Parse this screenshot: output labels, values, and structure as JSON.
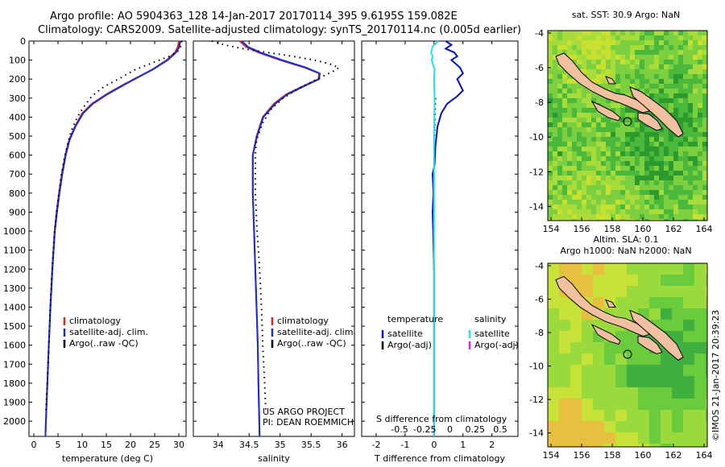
{
  "header": {
    "line1": "Argo profile: AO 5904363_128 14-Jan-2017 20170114_395 9.6195S 159.082E",
    "line2": "Climatology: CARS2009. Satellite-adjusted climatology: synTS_20170114.nc (0.005d earlier)"
  },
  "side_label": "©IMOS 21-Jan-2017 20:39:23",
  "colors": {
    "climatology": "#e8201c",
    "satellite_adj": "#1030e0",
    "argo": "#000000",
    "sat_temp": "#0010c8",
    "sat_sal": "#20e0f0",
    "argo_sal_adj": "#e020e0"
  },
  "chart_data": [
    {
      "type": "line",
      "id": "temperature",
      "xlabel": "temperature (deg C)",
      "xlim": [
        -1,
        31.5
      ],
      "xticks": [
        0,
        5,
        10,
        15,
        20,
        25,
        30
      ],
      "xticklabels": [
        "0",
        "5",
        "10",
        "15",
        "20",
        "25",
        "30"
      ],
      "ylim": [
        0,
        2080
      ],
      "yticks": [
        0,
        100,
        200,
        300,
        400,
        500,
        600,
        700,
        800,
        900,
        1000,
        1100,
        1200,
        1300,
        1400,
        1500,
        1600,
        1700,
        1800,
        1900,
        2000
      ],
      "legend": [
        "climatology",
        "satellite-adj. clim.",
        "Argo(..raw -QC)"
      ],
      "series": [
        {
          "name": "climatology",
          "style": "solid",
          "color": "#e8201c",
          "points": [
            [
              30,
              0
            ],
            [
              29.8,
              30
            ],
            [
              29.2,
              60
            ],
            [
              27.5,
              100
            ],
            [
              24.5,
              150
            ],
            [
              21.5,
              190
            ],
            [
              18.5,
              230
            ],
            [
              15,
              280
            ],
            [
              12,
              330
            ],
            [
              10,
              380
            ],
            [
              8.5,
              450
            ],
            [
              7.3,
              520
            ],
            [
              6.5,
              600
            ],
            [
              5.8,
              700
            ],
            [
              5.2,
              800
            ],
            [
              4.7,
              900
            ],
            [
              4.3,
              1000
            ],
            [
              3.8,
              1200
            ],
            [
              3.4,
              1400
            ],
            [
              3.1,
              1600
            ],
            [
              2.8,
              1800
            ],
            [
              2.5,
              2000
            ],
            [
              2.4,
              2080
            ]
          ]
        },
        {
          "name": "satellite-adj. clim.",
          "style": "solid",
          "color": "#1030e0",
          "points": [
            [
              30.3,
              0
            ],
            [
              30.1,
              30
            ],
            [
              29.4,
              60
            ],
            [
              27.7,
              100
            ],
            [
              24.6,
              150
            ],
            [
              21.6,
              190
            ],
            [
              18.7,
              230
            ],
            [
              15.2,
              280
            ],
            [
              12.2,
              330
            ],
            [
              10.2,
              380
            ],
            [
              8.6,
              450
            ],
            [
              7.4,
              520
            ],
            [
              6.6,
              600
            ],
            [
              5.9,
              700
            ],
            [
              5.3,
              800
            ],
            [
              4.8,
              900
            ],
            [
              4.35,
              1000
            ],
            [
              3.85,
              1200
            ],
            [
              3.45,
              1400
            ],
            [
              3.1,
              1600
            ],
            [
              2.8,
              1800
            ],
            [
              2.5,
              2000
            ],
            [
              2.4,
              2080
            ]
          ]
        },
        {
          "name": "Argo(..raw -QC)",
          "style": "dotted",
          "color": "#000000",
          "points": [
            [
              30.6,
              0
            ],
            [
              30.5,
              20
            ],
            [
              30,
              50
            ],
            [
              28,
              80
            ],
            [
              25,
              110
            ],
            [
              21,
              150
            ],
            [
              17.5,
              200
            ],
            [
              14.5,
              240
            ],
            [
              12,
              290
            ],
            [
              10.5,
              340
            ],
            [
              9,
              400
            ],
            [
              7.8,
              470
            ],
            [
              7,
              540
            ],
            [
              6.3,
              620
            ],
            [
              5.7,
              700
            ],
            [
              5.2,
              800
            ],
            [
              4.7,
              900
            ],
            [
              4.3,
              1000
            ],
            [
              3.8,
              1200
            ],
            [
              3.4,
              1400
            ],
            [
              3.1,
              1600
            ],
            [
              2.8,
              1800
            ],
            [
              2.5,
              1950
            ]
          ]
        }
      ]
    },
    {
      "type": "line",
      "id": "salinity",
      "xlabel": "salinity",
      "xlim": [
        33.6,
        36.2
      ],
      "xticks": [
        34,
        34.5,
        35,
        35.5,
        36
      ],
      "xticklabels": [
        "34",
        "34.5",
        "35",
        "35.5",
        "36"
      ],
      "ylim": [
        0,
        2080
      ],
      "legend": [
        "climatology",
        "satellite-adj. clim.",
        "Argo(..raw -QC)"
      ],
      "annotation": [
        "US ARGO PROJECT",
        "PI: DEAN ROEMMICH"
      ],
      "series": [
        {
          "name": "climatology",
          "style": "solid",
          "color": "#e8201c",
          "points": [
            [
              34.35,
              0
            ],
            [
              34.45,
              30
            ],
            [
              34.65,
              60
            ],
            [
              35.0,
              100
            ],
            [
              35.4,
              140
            ],
            [
              35.63,
              170
            ],
            [
              35.62,
              200
            ],
            [
              35.35,
              240
            ],
            [
              35.1,
              280
            ],
            [
              34.9,
              330
            ],
            [
              34.72,
              400
            ],
            [
              34.62,
              500
            ],
            [
              34.56,
              600
            ],
            [
              34.56,
              800
            ],
            [
              34.58,
              1000
            ],
            [
              34.6,
              1200
            ],
            [
              34.62,
              1400
            ],
            [
              34.64,
              1600
            ],
            [
              34.65,
              1800
            ],
            [
              34.67,
              2080
            ]
          ]
        },
        {
          "name": "satellite-adj. clim.",
          "style": "solid",
          "color": "#1030e0",
          "points": [
            [
              34.38,
              0
            ],
            [
              34.48,
              30
            ],
            [
              34.68,
              60
            ],
            [
              35.03,
              100
            ],
            [
              35.42,
              140
            ],
            [
              35.64,
              170
            ],
            [
              35.63,
              200
            ],
            [
              35.37,
              240
            ],
            [
              35.12,
              280
            ],
            [
              34.92,
              330
            ],
            [
              34.73,
              400
            ],
            [
              34.63,
              500
            ],
            [
              34.56,
              600
            ],
            [
              34.56,
              800
            ],
            [
              34.58,
              1000
            ],
            [
              34.6,
              1200
            ],
            [
              34.62,
              1400
            ],
            [
              34.64,
              1600
            ],
            [
              34.65,
              1800
            ],
            [
              34.67,
              2080
            ]
          ]
        },
        {
          "name": "Argo(..raw -QC)",
          "style": "dotted",
          "color": "#000000",
          "points": [
            [
              33.9,
              0
            ],
            [
              34.1,
              20
            ],
            [
              34.4,
              40
            ],
            [
              34.8,
              60
            ],
            [
              35.2,
              80
            ],
            [
              35.55,
              100
            ],
            [
              35.8,
              120
            ],
            [
              35.95,
              140
            ],
            [
              35.85,
              160
            ],
            [
              35.6,
              200
            ],
            [
              35.3,
              250
            ],
            [
              35.05,
              300
            ],
            [
              34.85,
              360
            ],
            [
              34.72,
              430
            ],
            [
              34.62,
              520
            ],
            [
              34.6,
              600
            ],
            [
              34.6,
              800
            ],
            [
              34.63,
              1000
            ],
            [
              34.67,
              1200
            ],
            [
              34.7,
              1400
            ],
            [
              34.72,
              1600
            ],
            [
              34.75,
              1800
            ],
            [
              34.77,
              1950
            ]
          ]
        }
      ]
    },
    {
      "type": "line",
      "id": "difference",
      "xlabel": "T difference from climatology",
      "xlim": [
        -2.5,
        2.9
      ],
      "xticks": [
        -2,
        -1,
        0,
        1,
        2
      ],
      "xticklabels": [
        "-2",
        "-1",
        "0",
        "1",
        "2"
      ],
      "top_label": "S difference from climatology",
      "top_ticks": [
        -0.5,
        -0.25,
        0,
        0.25,
        0.5
      ],
      "top_ticklabels": [
        "-0.5",
        "-0.25",
        "0",
        "0.25",
        "0.5"
      ],
      "ylim": [
        0,
        2080
      ],
      "legend_groups": [
        {
          "title": "temperature",
          "items": [
            "satellite",
            "Argo(-adj)"
          ]
        },
        {
          "title": "salinity",
          "items": [
            "satellite",
            "Argo(-adj)"
          ]
        }
      ],
      "series": [
        {
          "name": "satellite",
          "quantity": "temperature",
          "style": "solid",
          "color": "#0010c8",
          "points": [
            [
              0.4,
              0
            ],
            [
              0.6,
              20
            ],
            [
              0.4,
              40
            ],
            [
              0.7,
              60
            ],
            [
              0.8,
              80
            ],
            [
              0.6,
              100
            ],
            [
              0.9,
              140
            ],
            [
              1.0,
              170
            ],
            [
              0.8,
              200
            ],
            [
              0.9,
              230
            ],
            [
              1.0,
              260
            ],
            [
              0.8,
              290
            ],
            [
              0.45,
              330
            ],
            [
              0.25,
              380
            ],
            [
              0.12,
              450
            ],
            [
              0.05,
              550
            ],
            [
              0.02,
              650
            ],
            [
              -0.05,
              700
            ],
            [
              -0.02,
              800
            ],
            [
              -0.05,
              900
            ],
            [
              -0.03,
              1000
            ],
            [
              0.0,
              1200
            ],
            [
              0.0,
              1500
            ],
            [
              0.0,
              1800
            ],
            [
              0.0,
              2080
            ]
          ]
        },
        {
          "name": "Argo(-adj)",
          "quantity": "temperature",
          "style": "dotted",
          "color": "#000000",
          "points": [
            [
              0.05,
              300
            ],
            [
              0.03,
              400
            ],
            [
              0.02,
              500
            ]
          ]
        },
        {
          "name": "satellite",
          "quantity": "salinity",
          "style": "solid",
          "color": "#20e0f0",
          "points": [
            [
              0.15,
              0
            ],
            [
              -0.05,
              30
            ],
            [
              -0.1,
              60
            ],
            [
              -0.05,
              80
            ],
            [
              -0.08,
              100
            ],
            [
              0.02,
              150
            ],
            [
              0.0,
              200
            ],
            [
              0.02,
              300
            ],
            [
              0.0,
              500
            ],
            [
              0.0,
              800
            ],
            [
              0.0,
              1200
            ],
            [
              0.0,
              1600
            ],
            [
              0.0,
              2080
            ]
          ]
        }
      ]
    }
  ],
  "maps": [
    {
      "id": "sst-map",
      "title_lines": [
        "sat. SST: 30.9 Argo: NaN"
      ],
      "xticks": [
        "154",
        "156",
        "158",
        "160",
        "162",
        "164"
      ],
      "yticks": [
        "-4",
        "-6",
        "-8",
        "-10",
        "-12",
        "-14"
      ]
    },
    {
      "id": "sla-map",
      "title_lines": [
        "Altim. SLA: 0.1",
        "Argo h1000: NaN h2000: NaN"
      ],
      "xticks": [
        "154",
        "156",
        "158",
        "160",
        "162",
        "164"
      ],
      "yticks": [
        "-4",
        "-6",
        "-8",
        "-10",
        "-12",
        "-14"
      ]
    }
  ]
}
